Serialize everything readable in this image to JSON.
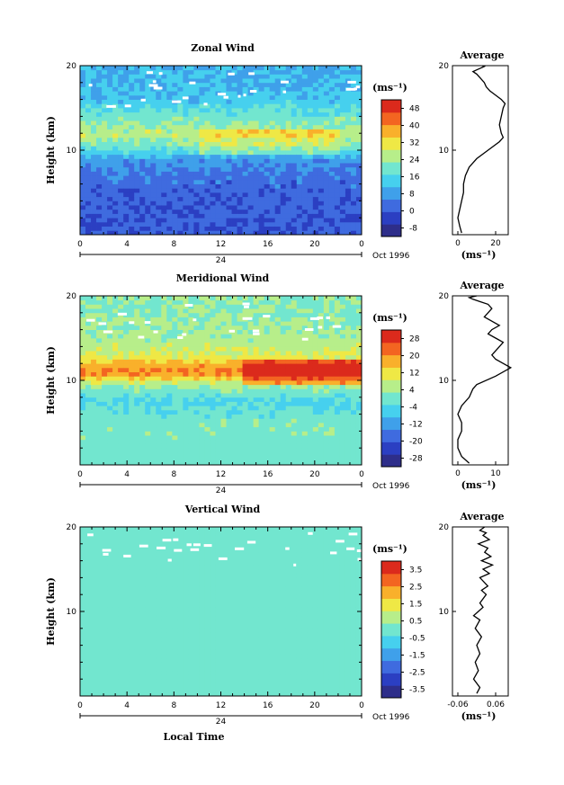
{
  "chart_data": [
    {
      "type": "heatmap",
      "title": "Zonal Wind",
      "ylabel": "Height (km)",
      "xlabel": "",
      "xlim": [
        0,
        24
      ],
      "ylim": [
        0,
        20
      ],
      "x_ticks": [
        "0",
        "4",
        "8",
        "12",
        "16",
        "20",
        "0"
      ],
      "y_ticks": [
        "10",
        "20"
      ],
      "day_label": "24",
      "month_label": "Oct 1996",
      "colorbar": {
        "unit": "(ms⁻¹)",
        "levels": [
          -8,
          0,
          8,
          16,
          24,
          32,
          40,
          48
        ],
        "labels": [
          "-8",
          "0",
          "8",
          "16",
          "24",
          "32",
          "40",
          "48"
        ]
      },
      "features": [
        {
          "height": 2.5,
          "value": 3
        },
        {
          "height": 5,
          "value": 4
        },
        {
          "height": 7.5,
          "value": 6
        },
        {
          "height": 9,
          "value": 10
        },
        {
          "height": 10.5,
          "value": 20
        },
        {
          "height": 12,
          "value": 26
        },
        {
          "height": 14,
          "value": 20
        },
        {
          "height": 16,
          "value": 14
        },
        {
          "height": 18,
          "value": 12
        }
      ]
    },
    {
      "type": "line",
      "title": "Average",
      "xlabel": "(ms⁻¹)",
      "x_ticks": [
        "0",
        "20"
      ],
      "y_ticks": [
        "10",
        "20"
      ],
      "ylim": [
        0,
        20
      ],
      "x": [
        2,
        1,
        0,
        1,
        2,
        3,
        3,
        4,
        6,
        10,
        16,
        22,
        24,
        23,
        22,
        23,
        24,
        25,
        23,
        20,
        17,
        15,
        14,
        12,
        10,
        8,
        10,
        12,
        13,
        14,
        13
      ],
      "y": [
        0.2,
        1,
        2,
        3,
        4,
        5,
        6,
        7,
        8,
        9,
        10,
        11,
        11.5,
        12,
        13,
        14,
        15,
        15.5,
        16,
        16.5,
        17,
        17.5,
        18,
        18.5,
        19,
        19.3,
        19.5,
        19.7,
        19.8,
        19.9,
        20
      ]
    },
    {
      "type": "heatmap",
      "title": "Meridional Wind",
      "ylabel": "Height (km)",
      "xlabel": "",
      "xlim": [
        0,
        24
      ],
      "ylim": [
        0,
        20
      ],
      "x_ticks": [
        "0",
        "4",
        "8",
        "12",
        "16",
        "20",
        "0"
      ],
      "y_ticks": [
        "10",
        "20"
      ],
      "day_label": "24",
      "month_label": "Oct 1996",
      "colorbar": {
        "unit": "(ms⁻¹)",
        "levels": [
          -28,
          -20,
          -12,
          -4,
          4,
          12,
          20,
          28
        ],
        "labels": [
          "-28",
          "-20",
          "-12",
          "-4",
          "4",
          "12",
          "20",
          "28"
        ]
      },
      "features": [
        {
          "height": 2.5,
          "value": 0
        },
        {
          "height": 5,
          "value": 1
        },
        {
          "height": 7.5,
          "value": -4
        },
        {
          "height": 9.5,
          "value": 4
        },
        {
          "height": 11,
          "value": 20
        },
        {
          "height": 13,
          "value": 8
        },
        {
          "height": 15,
          "value": 4
        },
        {
          "height": 18,
          "value": 2
        }
      ]
    },
    {
      "type": "line",
      "title": "Average",
      "xlabel": "(ms⁻¹)",
      "x_ticks": [
        "0",
        "10"
      ],
      "y_ticks": [
        "10",
        "20"
      ],
      "ylim": [
        0,
        20
      ],
      "x": [
        3,
        1,
        0,
        0,
        1,
        1,
        0,
        1,
        3,
        4,
        5,
        10,
        14,
        12,
        10,
        9,
        11,
        12,
        10,
        8,
        9,
        11,
        9,
        7,
        8,
        9,
        8,
        6,
        4,
        3,
        5
      ],
      "y": [
        0.2,
        1,
        2,
        3,
        4,
        5,
        6,
        7,
        8,
        9,
        9.5,
        10.5,
        11.5,
        12,
        12.5,
        13,
        14,
        14.5,
        15,
        15.5,
        16,
        16.5,
        17,
        17.5,
        18,
        18.5,
        19,
        19.3,
        19.6,
        19.8,
        20
      ]
    },
    {
      "type": "heatmap",
      "title": "Vertical Wind",
      "ylabel": "Height (km)",
      "xlabel": "Local Time",
      "xlim": [
        0,
        24
      ],
      "ylim": [
        0,
        20
      ],
      "x_ticks": [
        "0",
        "4",
        "8",
        "12",
        "16",
        "20",
        "0"
      ],
      "y_ticks": [
        "10",
        "20"
      ],
      "day_label": "24",
      "month_label": "Oct 1996",
      "colorbar": {
        "unit": "(ms⁻¹)",
        "levels": [
          -3.5,
          -2.5,
          -1.5,
          -0.5,
          0.5,
          1.5,
          2.5,
          3.5
        ],
        "labels": [
          "-3.5",
          "-2.5",
          "-1.5",
          "-0.5",
          "0.5",
          "1.5",
          "2.5",
          "3.5"
        ]
      },
      "features": [
        {
          "height": 3,
          "value": 0
        },
        {
          "height": 10,
          "value": 0.1
        },
        {
          "height": 17,
          "value": 0
        }
      ]
    },
    {
      "type": "line",
      "title": "Average",
      "xlabel": "(ms⁻¹)",
      "x_ticks": [
        "-0.06",
        "0.06"
      ],
      "y_ticks": [
        "10",
        "20"
      ],
      "ylim": [
        0,
        20
      ],
      "x": [
        0,
        0.01,
        -0.01,
        0.005,
        -0.005,
        0.01,
        0,
        0.015,
        -0.005,
        0.01,
        -0.01,
        0.005,
        0.02,
        0.01,
        0.03,
        0.015,
        0.035,
        0.01,
        0.04,
        0.02,
        0.05,
        0.015,
        0.045,
        0.025,
        0.035,
        0.005,
        0.04,
        0.02,
        0.03,
        0.01,
        0.025
      ],
      "y": [
        0.3,
        1,
        2,
        3,
        4,
        5,
        6,
        7,
        8,
        9,
        9.5,
        10,
        10.5,
        11,
        12,
        12.5,
        13,
        14,
        14.5,
        15,
        15.5,
        16,
        16.5,
        17,
        17.5,
        18,
        18.5,
        19,
        19.3,
        19.6,
        20
      ]
    }
  ]
}
